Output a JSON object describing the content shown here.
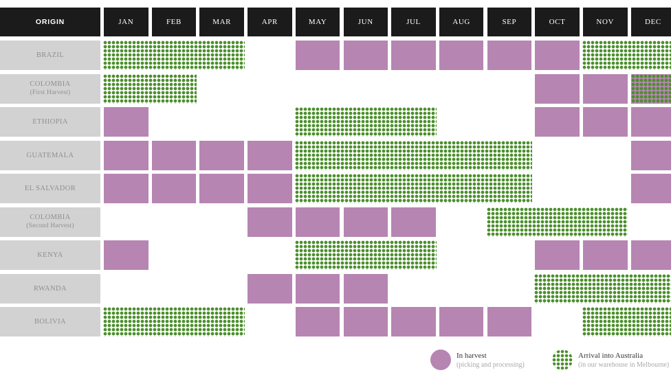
{
  "chart_data": {
    "type": "table",
    "corner_header": "ORIGIN",
    "months": [
      "JAN",
      "FEB",
      "MAR",
      "APR",
      "MAY",
      "JUN",
      "JUL",
      "AUG",
      "SEP",
      "OCT",
      "NOV",
      "DEC"
    ],
    "origins": [
      {
        "name": "BRAZIL",
        "sub": "",
        "harvest": [
          "MAY",
          "JUN",
          "JUL",
          "AUG",
          "SEP",
          "OCT"
        ],
        "arrival": [
          "JAN",
          "FEB",
          "MAR",
          "NOV",
          "DEC"
        ]
      },
      {
        "name": "COLOMBIA",
        "sub": "(First Harvest)",
        "harvest": [
          "OCT",
          "NOV",
          "DEC"
        ],
        "arrival": [
          "JAN",
          "FEB",
          "DEC"
        ]
      },
      {
        "name": "ETHIOPIA",
        "sub": "",
        "harvest": [
          "JAN",
          "OCT",
          "NOV",
          "DEC"
        ],
        "arrival": [
          "MAY",
          "JUN",
          "JUL"
        ]
      },
      {
        "name": "GUATEMALA",
        "sub": "",
        "harvest": [
          "JAN",
          "FEB",
          "MAR",
          "APR",
          "DEC"
        ],
        "arrival": [
          "MAY",
          "JUN",
          "JUL",
          "AUG",
          "SEP"
        ]
      },
      {
        "name": "EL SALVADOR",
        "sub": "",
        "harvest": [
          "JAN",
          "FEB",
          "MAR",
          "APR",
          "DEC"
        ],
        "arrival": [
          "MAY",
          "JUN",
          "JUL",
          "AUG",
          "SEP"
        ]
      },
      {
        "name": "COLOMBIA",
        "sub": "(Second Harvest)",
        "harvest": [
          "APR",
          "MAY",
          "JUN",
          "JUL"
        ],
        "arrival": [
          "SEP",
          "OCT",
          "NOV"
        ]
      },
      {
        "name": "KENYA",
        "sub": "",
        "harvest": [
          "JAN",
          "OCT",
          "NOV",
          "DEC"
        ],
        "arrival": [
          "MAY",
          "JUN",
          "JUL"
        ]
      },
      {
        "name": "RWANDA",
        "sub": "",
        "harvest": [
          "APR",
          "MAY",
          "JUN"
        ],
        "arrival": [
          "OCT",
          "NOV",
          "DEC"
        ]
      },
      {
        "name": "BOLIVIA",
        "sub": "",
        "harvest": [
          "MAY",
          "JUN",
          "JUL",
          "AUG",
          "SEP"
        ],
        "arrival": [
          "JAN",
          "FEB",
          "MAR",
          "NOV",
          "DEC"
        ]
      }
    ],
    "legend": [
      {
        "key": "harvest",
        "label": "In harvest",
        "sublabel": "(picking and processing)"
      },
      {
        "key": "arrival",
        "label": "Arrival into Australia",
        "sublabel": "(in our warehouse in Melbourne)"
      }
    ],
    "colors": {
      "harvest": "#b685b2",
      "arrival": "#4b8f2c",
      "header_bg": "#1b1b1b",
      "label_bg": "#d2d2d2"
    }
  }
}
